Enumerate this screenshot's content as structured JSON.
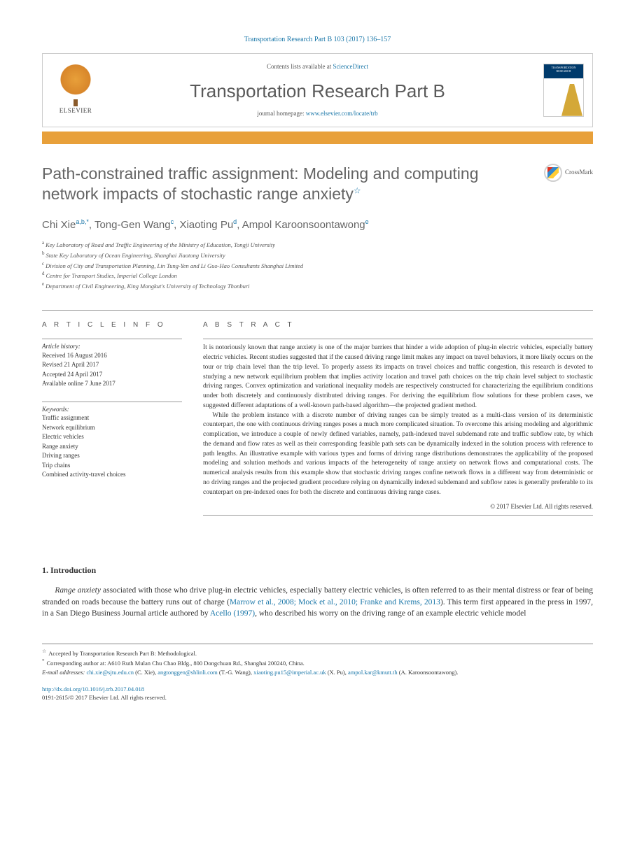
{
  "citation": "Transportation Research Part B 103 (2017) 136–157",
  "header": {
    "contents_prefix": "Contents lists available at ",
    "contents_link": "ScienceDirect",
    "journal_title": "Transportation Research Part B",
    "homepage_prefix": "journal homepage: ",
    "homepage_url": "www.elsevier.com/locate/trb",
    "elsevier_label": "ELSEVIER",
    "cover_label": "TRANSPORTATION RESEARCH"
  },
  "crossmark_label": "CrossMark",
  "title": "Path-constrained traffic assignment: Modeling and computing network impacts of stochastic range anxiety",
  "title_note_symbol": "☆",
  "authors_html": "Chi Xie|a,b,*|, Tong-Gen Wang|c|, Xiaoting Pu|d|, Ampol Karoonsoontawong|e|",
  "affiliations": [
    {
      "sup": "a",
      "text": "Key Laboratory of Road and Traffic Engineering of the Ministry of Education, Tongji University"
    },
    {
      "sup": "b",
      "text": "State Key Laboratory of Ocean Engineering, Shanghai Jiaotong University"
    },
    {
      "sup": "c",
      "text": "Division of City and Transportation Planning, Lin Tung-Yen and Li Guo-Hao Consultants Shanghai Limited"
    },
    {
      "sup": "d",
      "text": "Centre for Transport Studies, Imperial College London"
    },
    {
      "sup": "e",
      "text": "Department of Civil Engineering, King Mongkut's University of Technology Thonburi"
    }
  ],
  "info_heading": "A R T I C L E   I N F O",
  "abstract_heading": "A B S T R A C T",
  "history_label": "Article history:",
  "history": [
    "Received 16 August 2016",
    "Revised 21 April 2017",
    "Accepted 24 April 2017",
    "Available online 7 June 2017"
  ],
  "keywords_label": "Keywords:",
  "keywords": [
    "Traffic assignment",
    "Network equilibrium",
    "Electric vehicles",
    "Range anxiety",
    "Driving ranges",
    "Trip chains",
    "Combined activity-travel choices"
  ],
  "abstract_p1": "It is notoriously known that range anxiety is one of the major barriers that hinder a wide adoption of plug-in electric vehicles, especially battery electric vehicles. Recent studies suggested that if the caused driving range limit makes any impact on travel behaviors, it more likely occurs on the tour or trip chain level than the trip level. To properly assess its impacts on travel choices and traffic congestion, this research is devoted to studying a new network equilibrium problem that implies activity location and travel path choices on the trip chain level subject to stochastic driving ranges. Convex optimization and variational inequality models are respectively constructed for characterizing the equilibrium conditions under both discretely and continuously distributed driving ranges. For deriving the equilibrium flow solutions for these problem cases, we suggested different adaptations of a well-known path-based algorithm—the projected gradient method.",
  "abstract_p2": "While the problem instance with a discrete number of driving ranges can be simply treated as a multi-class version of its deterministic counterpart, the one with continuous driving ranges poses a much more complicated situation. To overcome this arising modeling and algorithmic complication, we introduce a couple of newly defined variables, namely, path-indexed travel subdemand rate and traffic subflow rate, by which the demand and flow rates as well as their corresponding feasible path sets can be dynamically indexed in the solution process with reference to path lengths. An illustrative example with various types and forms of driving range distributions demonstrates the applicability of the proposed modeling and solution methods and various impacts of the heterogeneity of range anxiety on network flows and computational costs. The numerical analysis results from this example show that stochastic driving ranges confine network flows in a different way from deterministic or no driving ranges and the projected gradient procedure relying on dynamically indexed subdemand and subflow rates is generally preferable to its counterpart on pre-indexed ones for both the discrete and continuous driving range cases.",
  "copyright": "© 2017 Elsevier Ltd. All rights reserved.",
  "intro_heading": "1. Introduction",
  "intro_body_pre": "Range anxiety",
  "intro_body_mid": " associated with those who drive plug-in electric vehicles, especially battery electric vehicles, is often referred to as their mental distress or fear of being stranded on roads because the battery runs out of charge (",
  "intro_cite1": "Marrow et al., 2008; Mock et al., 2010; Franke and Krems, 2013",
  "intro_body_mid2": "). This term first appeared in the press in 1997, in a San Diego Business Journal article authored by ",
  "intro_cite2": "Acello (1997)",
  "intro_body_post": ", who described his worry on the driving range of an example electric vehicle model",
  "footnotes": {
    "accepted": "Accepted by Transportation Research Part B: Methodological.",
    "corresponding": "Corresponding author at: A610 Ruth Mulan Chu Chao Bldg., 800 Dongchuan Rd., Shanghai 200240, China.",
    "email_label": "E-mail addresses:",
    "emails": [
      {
        "addr": "chi.xie@sjtu.edu.cn",
        "who": "(C. Xie)"
      },
      {
        "addr": "angtonggen@shlinli.com",
        "who": "(T.-G. Wang)"
      },
      {
        "addr": "xiaoting.pu15@imperial.ac.uk",
        "who": "(X. Pu)"
      },
      {
        "addr": "ampol.kar@kmutt.th",
        "who": "(A. Karoonsoontawong)"
      }
    ]
  },
  "doi": "http://dx.doi.org/10.1016/j.trb.2017.04.018",
  "issn_line": "0191-2615/© 2017 Elsevier Ltd. All rights reserved.",
  "colors": {
    "link": "#1976a8",
    "accent": "#e8a03a",
    "text": "#333333",
    "heading_gray": "#646464"
  }
}
